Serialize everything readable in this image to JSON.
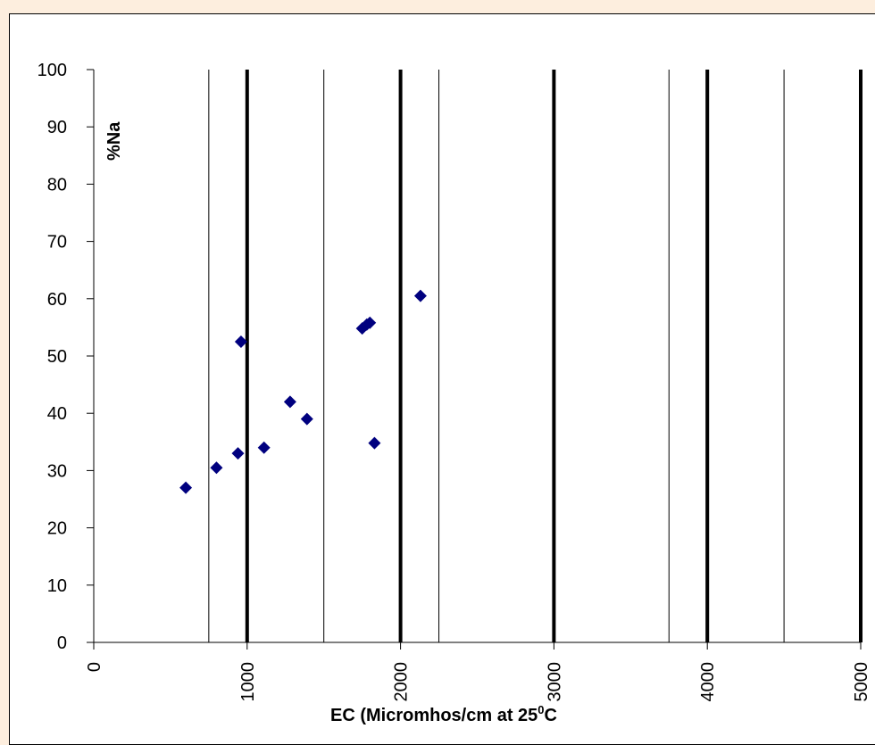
{
  "chart_data": {
    "type": "scatter",
    "xlabel": "EC (Micromhos/cm  at 25",
    "xlabel_sup": "0",
    "xlabel_tail": "C",
    "ylabel": "%Na",
    "xlim": [
      0,
      5000
    ],
    "ylim": [
      0,
      100
    ],
    "x_ticks": [
      "0",
      "1000",
      "2000",
      "3000",
      "4000",
      "5000"
    ],
    "y_ticks": [
      "0",
      "10",
      "20",
      "30",
      "40",
      "50",
      "60",
      "70",
      "80",
      "90",
      "100"
    ],
    "grid_thick_x": [
      1000,
      2000,
      3000,
      4000
    ],
    "grid_thin_x": [
      750,
      1500,
      2250,
      3750,
      4500
    ],
    "series": [
      {
        "color": "#00007f",
        "marker": "diamond",
        "points": [
          {
            "x": 600,
            "y": 27
          },
          {
            "x": 800,
            "y": 30.5
          },
          {
            "x": 940,
            "y": 33
          },
          {
            "x": 960,
            "y": 52.5
          },
          {
            "x": 1110,
            "y": 34
          },
          {
            "x": 1280,
            "y": 42
          },
          {
            "x": 1390,
            "y": 39
          },
          {
            "x": 1750,
            "y": 54.8
          },
          {
            "x": 1780,
            "y": 55.5
          },
          {
            "x": 1800,
            "y": 55.8
          },
          {
            "x": 1830,
            "y": 34.8
          },
          {
            "x": 2130,
            "y": 60.5
          }
        ]
      }
    ]
  }
}
